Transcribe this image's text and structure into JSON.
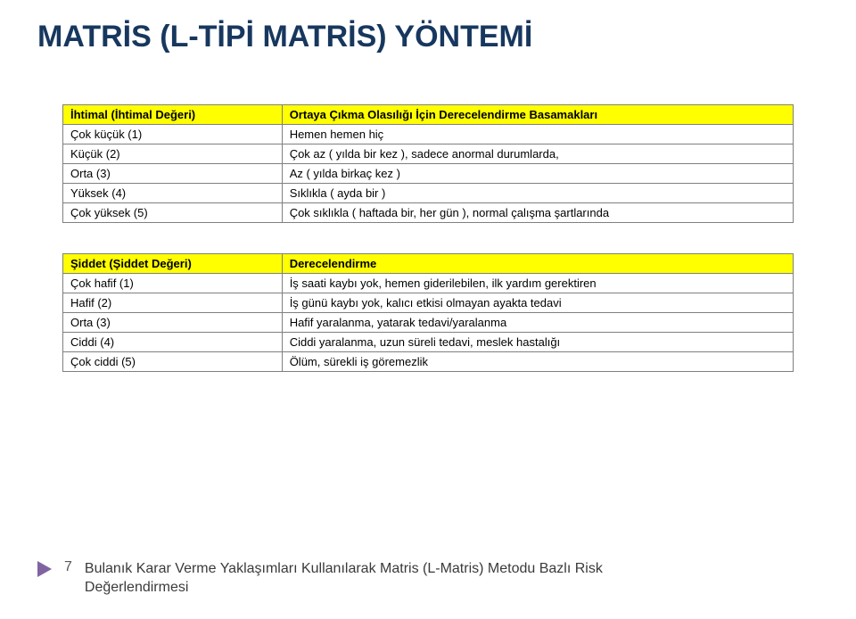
{
  "title": "MATRİS (L-TİPİ MATRİS) YÖNTEMİ",
  "title_color": "#17375e",
  "table1": {
    "header_bg": "#ffff00",
    "columns": [
      "İhtimal (İhtimal Değeri)",
      "Ortaya Çıkma Olasılığı İçin Derecelendirme Basamakları"
    ],
    "rows": [
      [
        "Çok küçük (1)",
        "Hemen hemen hiç"
      ],
      [
        "Küçük (2)",
        "Çok az ( yılda bir kez ), sadece anormal durumlarda,"
      ],
      [
        "Orta (3)",
        "Az ( yılda birkaç kez )"
      ],
      [
        "Yüksek (4)",
        "Sıklıkla ( ayda bir )"
      ],
      [
        "Çok yüksek (5)",
        "Çok sıklıkla ( haftada bir, her gün ), normal çalışma şartlarında"
      ]
    ]
  },
  "table2": {
    "header_bg": "#ffff00",
    "columns": [
      "Şiddet (Şiddet Değeri)",
      "Derecelendirme"
    ],
    "rows": [
      [
        "Çok hafif (1)",
        "İş saati kaybı yok, hemen giderilebilen, ilk yardım gerektiren"
      ],
      [
        "Hafif  (2)",
        "İş günü kaybı yok, kalıcı etkisi olmayan ayakta tedavi"
      ],
      [
        "Orta (3)",
        "Hafif yaralanma, yatarak tedavi/yaralanma"
      ],
      [
        "Ciddi (4)",
        "Ciddi yaralanma, uzun süreli tedavi, meslek hastalığı"
      ],
      [
        "Çok ciddi (5)",
        "Ölüm, sürekli iş göremezlik"
      ]
    ]
  },
  "footer": {
    "slide_number": "7",
    "arrow_color": "#8064a2",
    "line1": "Bulanık Karar Verme Yaklaşımları Kullanılarak Matris (L-Matris) Metodu Bazlı Risk",
    "line2": "Değerlendirmesi"
  }
}
